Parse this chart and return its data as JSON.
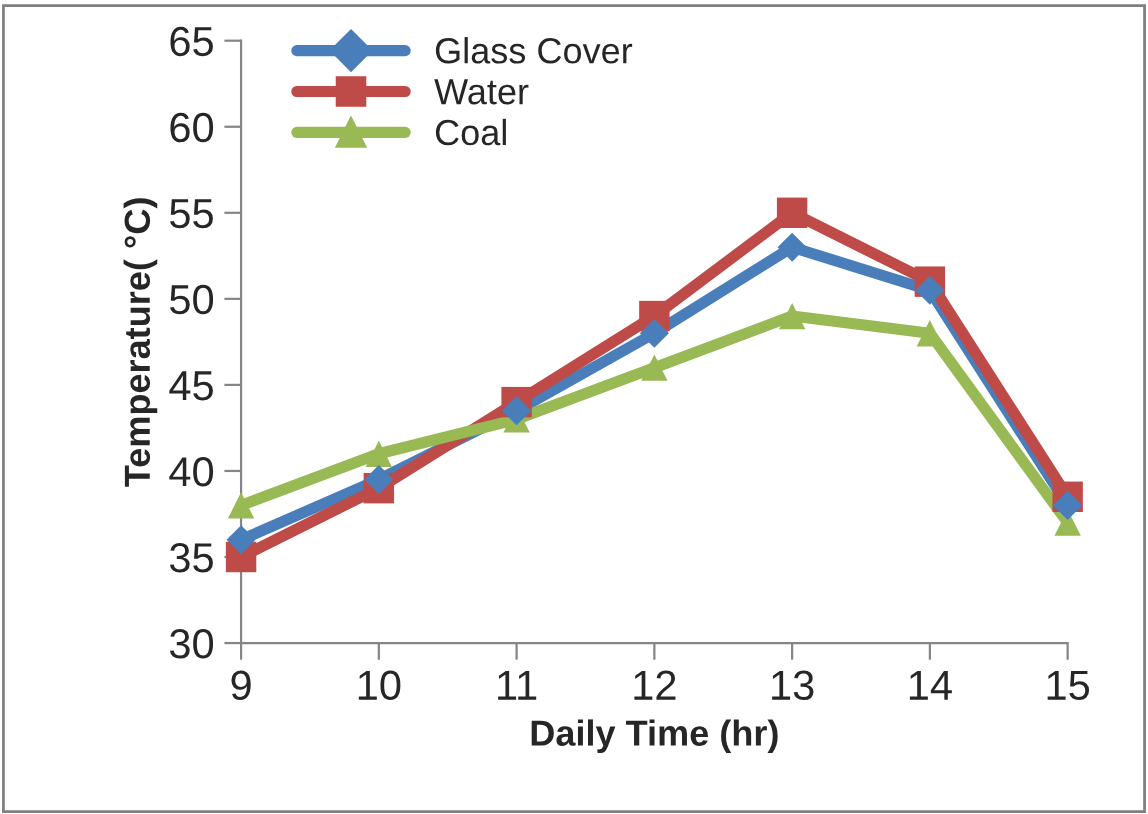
{
  "chart_data": {
    "type": "line",
    "xlabel": "Daily Time (hr)",
    "ylabel": "Temperature( °C)",
    "x": [
      9,
      10,
      11,
      12,
      13,
      14,
      15
    ],
    "series": [
      {
        "name": "Glass Cover",
        "color": "#4a7ebb",
        "marker": "diamond",
        "values": [
          36,
          39.5,
          43.5,
          48,
          53,
          50.5,
          38
        ]
      },
      {
        "name": "Water",
        "color": "#be4b48",
        "marker": "square",
        "values": [
          35,
          39,
          44,
          49,
          55,
          51,
          38.5
        ]
      },
      {
        "name": "Coal",
        "color": "#98b954",
        "marker": "triangle",
        "values": [
          38,
          41,
          43,
          46,
          49,
          48,
          37
        ]
      }
    ],
    "xlim": [
      9,
      15
    ],
    "xticks": [
      9,
      10,
      11,
      12,
      13,
      14,
      15
    ],
    "ylim": [
      30,
      65
    ],
    "yticks": [
      30,
      35,
      40,
      45,
      50,
      55,
      60,
      65
    ],
    "grid": false,
    "legend": "top left",
    "line_style": "solid"
  }
}
